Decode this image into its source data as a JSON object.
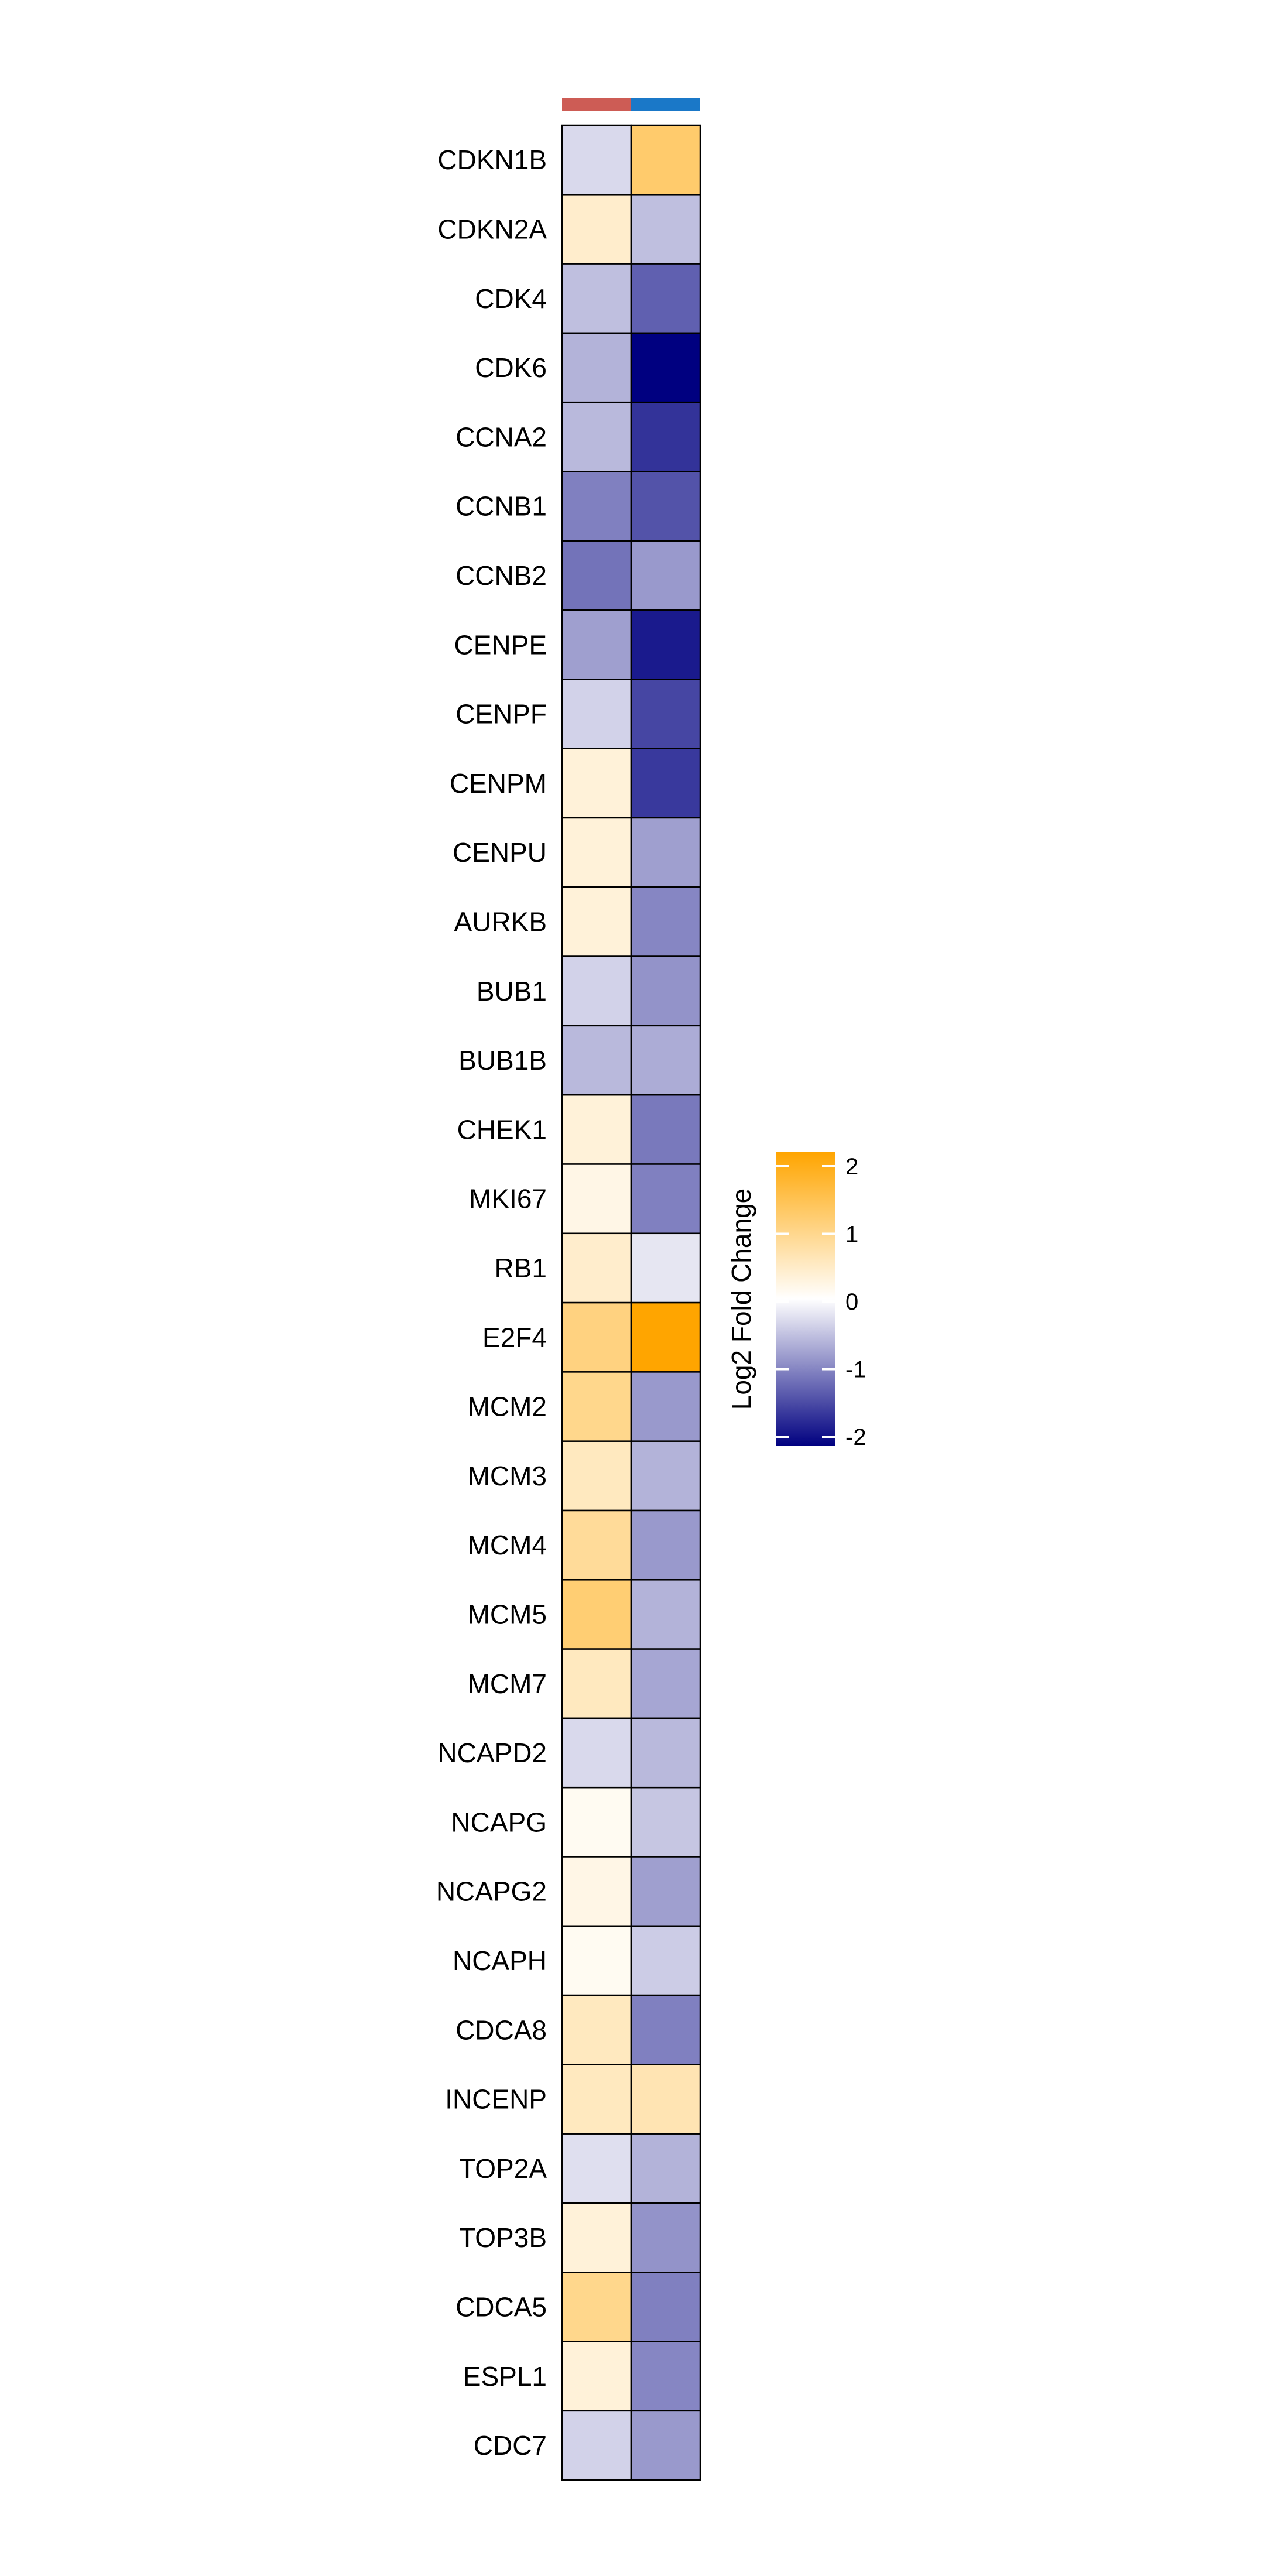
{
  "chart_data": {
    "type": "heatmap",
    "columns": [
      {
        "annotation_color": "#cd5c55"
      },
      {
        "annotation_color": "#1a78c8"
      }
    ],
    "rows": [
      "CDKN1B",
      "CDKN2A",
      "CDK4",
      "CDK6",
      "CCNA2",
      "CCNB1",
      "CCNB2",
      "CENPE",
      "CENPF",
      "CENPM",
      "CENPU",
      "AURKB",
      "BUB1",
      "BUB1B",
      "CHEK1",
      "MKI67",
      "RB1",
      "E2F4",
      "MCM2",
      "MCM3",
      "MCM4",
      "MCM5",
      "MCM7",
      "NCAPD2",
      "NCAPG",
      "NCAPG2",
      "NCAPH",
      "CDCA8",
      "INCENP",
      "TOP2A",
      "TOP3B",
      "CDCA5",
      "ESPL1",
      "CDC7"
    ],
    "values": [
      [
        -0.3,
        1.15
      ],
      [
        0.4,
        -0.5
      ],
      [
        -0.5,
        -1.25
      ],
      [
        -0.6,
        -2.0
      ],
      [
        -0.55,
        -1.6
      ],
      [
        -1.0,
        -1.35
      ],
      [
        -1.1,
        -0.8
      ],
      [
        -0.75,
        -1.8
      ],
      [
        -0.35,
        -1.45
      ],
      [
        0.3,
        -1.55
      ],
      [
        0.3,
        -0.75
      ],
      [
        0.3,
        -0.95
      ],
      [
        -0.35,
        -0.85
      ],
      [
        -0.55,
        -0.65
      ],
      [
        0.3,
        -1.05
      ],
      [
        0.2,
        -1.0
      ],
      [
        0.4,
        -0.2
      ],
      [
        1.0,
        2.0
      ],
      [
        0.9,
        -0.8
      ],
      [
        0.5,
        -0.6
      ],
      [
        0.8,
        -0.8
      ],
      [
        1.1,
        -0.6
      ],
      [
        0.5,
        -0.7
      ],
      [
        -0.3,
        -0.55
      ],
      [
        0.1,
        -0.45
      ],
      [
        0.2,
        -0.75
      ],
      [
        0.1,
        -0.4
      ],
      [
        0.5,
        -1.0
      ],
      [
        0.5,
        0.6
      ],
      [
        -0.25,
        -0.6
      ],
      [
        0.3,
        -0.85
      ],
      [
        0.9,
        -1.0
      ],
      [
        0.3,
        -0.95
      ],
      [
        -0.35,
        -0.8
      ]
    ],
    "scale": {
      "min": -2,
      "max": 2,
      "low_color": "#000080",
      "mid_color": "#ffffff",
      "high_color": "#ffa500",
      "ticks": [
        "2",
        "1",
        "0",
        "-1",
        "-2"
      ]
    },
    "legend_title": "Log2 Fold Change",
    "legend_position": "right"
  }
}
